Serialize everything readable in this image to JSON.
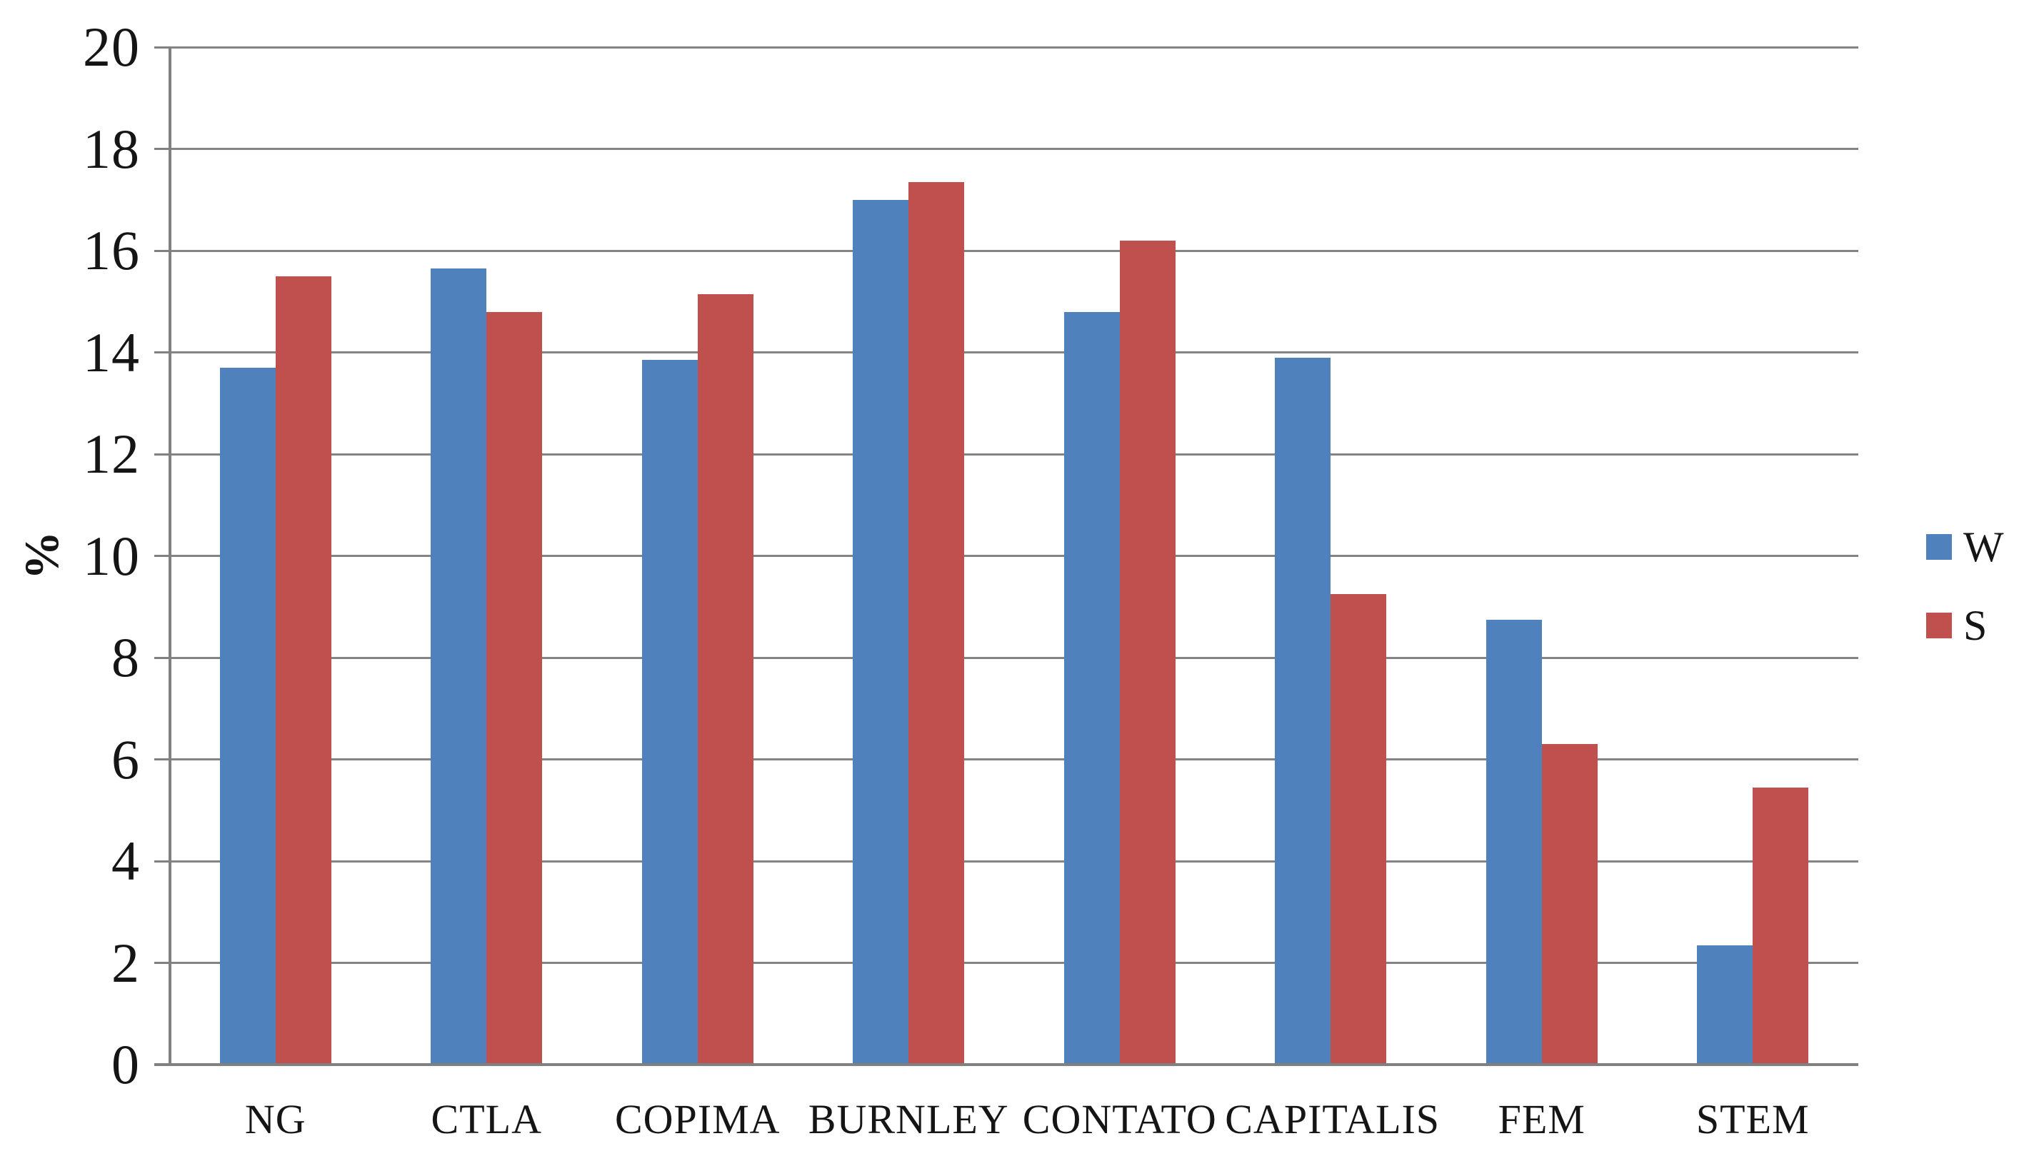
{
  "chart_data": {
    "type": "bar",
    "title": "",
    "xlabel": "",
    "ylabel": "%",
    "ylim": [
      0,
      20
    ],
    "ytick_step": 2,
    "yticks": [
      0,
      2,
      4,
      6,
      8,
      10,
      12,
      14,
      16,
      18,
      20
    ],
    "grid": true,
    "legend_position": "right",
    "categories": [
      "NG",
      "CTLA",
      "COPIMA",
      "BURNLEY",
      "CONTATO",
      "CAPITALIS",
      "FEM",
      "STEM"
    ],
    "series": [
      {
        "name": "W",
        "color": "#4F81BD",
        "values": [
          13.7,
          15.65,
          13.85,
          17.0,
          14.8,
          13.9,
          8.75,
          2.35
        ]
      },
      {
        "name": "S",
        "color": "#C0504D",
        "values": [
          15.5,
          14.8,
          15.15,
          17.35,
          16.2,
          9.25,
          6.3,
          5.45
        ]
      }
    ],
    "axis_color": "#808080",
    "gridline_color": "#848484",
    "text_color": "#151515",
    "background_color": "#FFFFFF"
  }
}
